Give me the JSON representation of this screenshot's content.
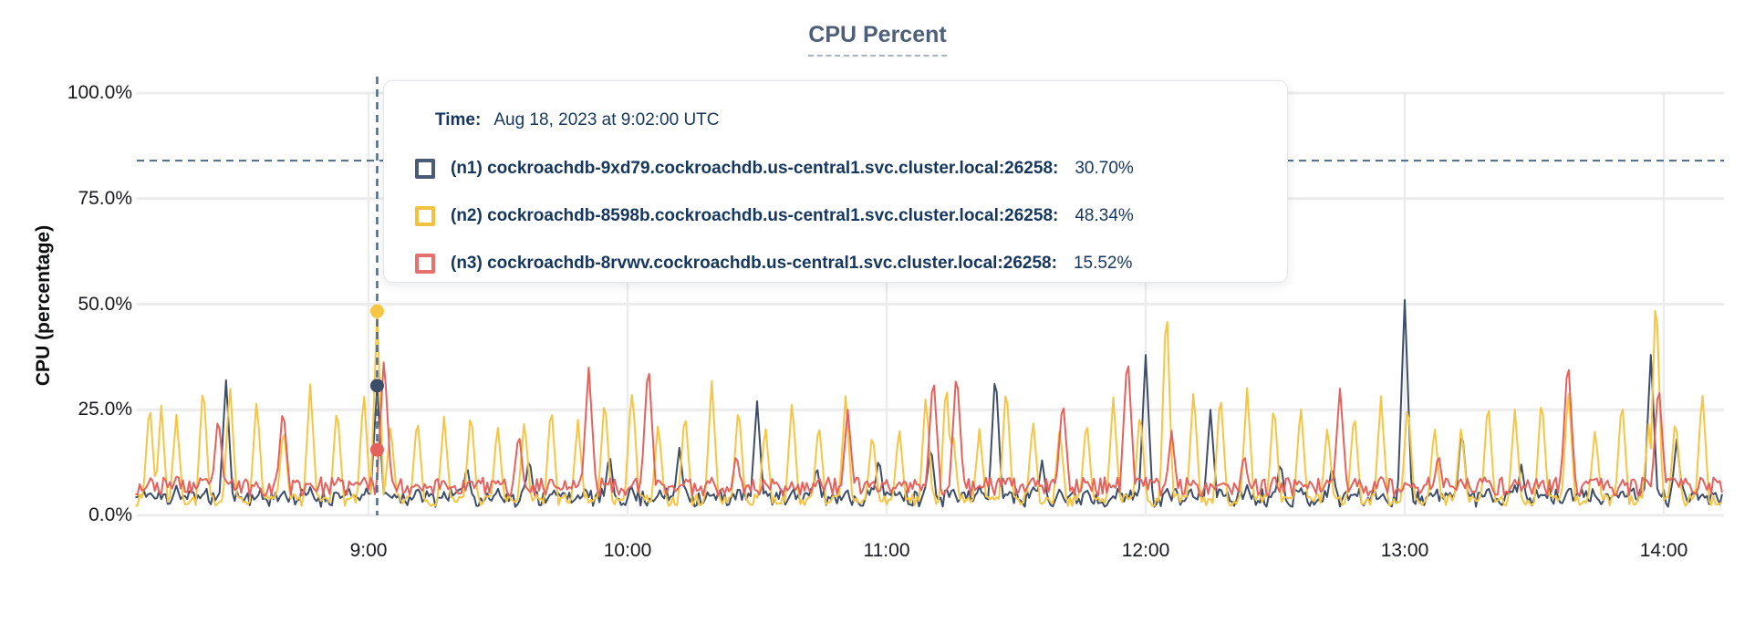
{
  "title": "CPU Percent",
  "axes": {
    "y_title": "CPU (percentage)",
    "y_tick_labels_top_to_bottom": [
      "100.0%",
      "75.0%",
      "50.0%",
      "25.0%",
      "0.0%"
    ],
    "x_tick_labels": [
      "9:00",
      "10:00",
      "11:00",
      "12:00",
      "13:00",
      "14:00"
    ]
  },
  "tooltip": {
    "time_label": "Time:",
    "time_value": "Aug 18, 2023 at 9:02:00 UTC",
    "rows": [
      {
        "series": "n1",
        "label": "(n1) cockroachdb-9xd79.cockroachdb.us-central1.svc.cluster.local:26258:",
        "value": "30.70%",
        "color": "#4a5b76"
      },
      {
        "series": "n2",
        "label": "(n2) cockroachdb-8598b.cockroachdb.us-central1.svc.cluster.local:26258:",
        "value": "48.34%",
        "color": "#f2c23e"
      },
      {
        "series": "n3",
        "label": "(n3) cockroachdb-8rvwv.cockroachdb.us-central1.svc.cluster.local:26258:",
        "value": "15.52%",
        "color": "#e4716d"
      }
    ]
  },
  "colors": {
    "grid": "#ececec",
    "dashed_guides": "#4e6b85",
    "tick_text": "#17191e",
    "tooltip_text": "#15365f",
    "title_text": "#4e5f7a"
  },
  "chart_data": {
    "type": "line",
    "title": "CPU Percent",
    "xlabel": "",
    "ylabel": "CPU (percentage)",
    "ylim": [
      0,
      100
    ],
    "y_ticks_pct": [
      0,
      25,
      50,
      75,
      100
    ],
    "x_ticks_hours": [
      9,
      10,
      11,
      12,
      13,
      14
    ],
    "x_range_hours": [
      8.1,
      14.23
    ],
    "grid": true,
    "legend_position": "tooltip-overlay",
    "threshold_dashed_line_pct": 84,
    "hover": {
      "time_h": 9.0333,
      "time_text": "Aug 18, 2023 at 9:02:00 UTC",
      "values_pct": {
        "n1": 30.7,
        "n2": 48.34,
        "n3": 15.52
      }
    },
    "sample_step_min": 0.5,
    "series": [
      {
        "id": "n1",
        "name": "(n1) cockroachdb-9xd79.cockroachdb.us-central1.svc.cluster.local:26258",
        "color": "#3e4e68",
        "seed": 11,
        "baseline_pct": 4.2,
        "noise_pct": 2.2,
        "small_bumps": {
          "period_min": 6.2,
          "h_min": 1.0,
          "h_max": 4.0
        },
        "spike_halfwidth_h": 0.03,
        "spikes": [
          [
            8.45,
            32
          ],
          [
            9.0333,
            30.7
          ],
          [
            9.38,
            12
          ],
          [
            9.62,
            14
          ],
          [
            9.93,
            15
          ],
          [
            10.2,
            16
          ],
          [
            10.5,
            27
          ],
          [
            10.73,
            12
          ],
          [
            10.97,
            14
          ],
          [
            11.17,
            17
          ],
          [
            11.42,
            35
          ],
          [
            11.6,
            13
          ],
          [
            12.0,
            38
          ],
          [
            12.25,
            25
          ],
          [
            12.52,
            13
          ],
          [
            12.72,
            12
          ],
          [
            13.0,
            51
          ],
          [
            13.22,
            21
          ],
          [
            13.45,
            12
          ],
          [
            13.95,
            38
          ],
          [
            14.05,
            18
          ]
        ]
      },
      {
        "id": "n2",
        "name": "(n2) cockroachdb-8598b.cockroachdb.us-central1.svc.cluster.local:26258",
        "color": "#f6c544",
        "seed": 7,
        "baseline_pct": 3.6,
        "noise_pct": 1.4,
        "regular_spikes": {
          "period_min": 6.2,
          "h_min": 17,
          "h_max": 30
        },
        "spike_halfwidth_h": 0.028,
        "spikes": [
          [
            8.2,
            26
          ],
          [
            9.0333,
            48.34
          ],
          [
            10.02,
            29
          ],
          [
            11.23,
            33
          ],
          [
            12.08,
            52
          ],
          [
            13.97,
            55
          ]
        ]
      },
      {
        "id": "n3",
        "name": "(n3) cockroachdb-8rvwv.cockroachdb.us-central1.svc.cluster.local:26258",
        "color": "#e4625e",
        "seed": 23,
        "baseline_pct": 6.8,
        "noise_pct": 2.2,
        "small_bumps": {
          "period_min": 6.2,
          "h_min": 1.0,
          "h_max": 3.5
        },
        "spike_halfwidth_h": 0.035,
        "spikes": [
          [
            8.42,
            24
          ],
          [
            8.67,
            26
          ],
          [
            9.06,
            38
          ],
          [
            9.58,
            20
          ],
          [
            9.85,
            35
          ],
          [
            10.08,
            37
          ],
          [
            10.42,
            15
          ],
          [
            10.85,
            25
          ],
          [
            11.18,
            34
          ],
          [
            11.27,
            35
          ],
          [
            11.68,
            28
          ],
          [
            11.93,
            39
          ],
          [
            12.1,
            20
          ],
          [
            12.38,
            15
          ],
          [
            12.75,
            30
          ],
          [
            13.13,
            15
          ],
          [
            13.63,
            38
          ],
          [
            13.98,
            32
          ]
        ]
      }
    ]
  }
}
